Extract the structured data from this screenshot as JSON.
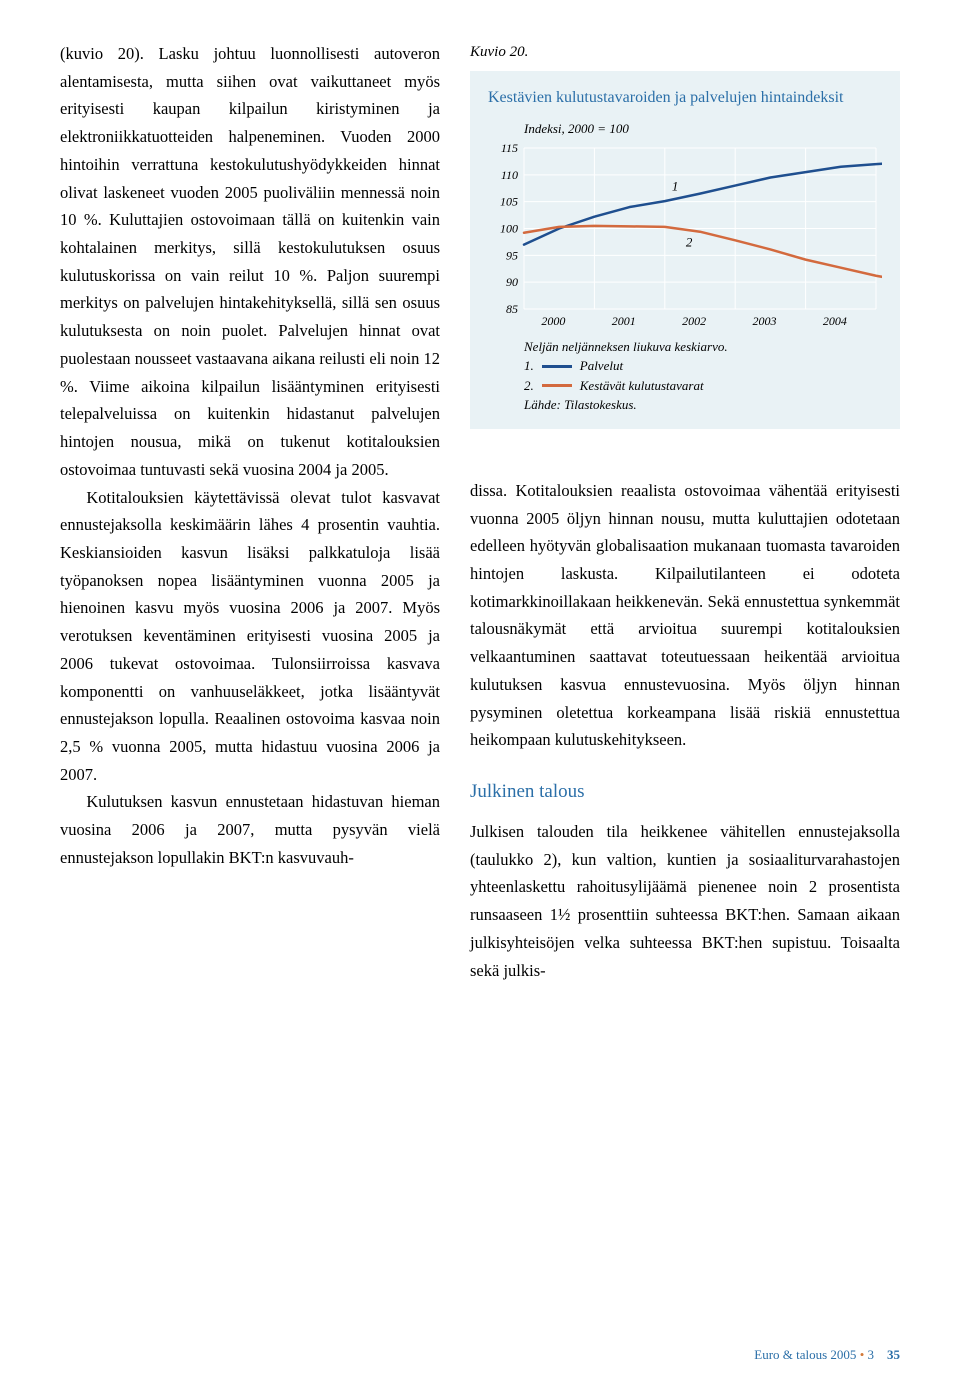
{
  "left": {
    "p1": "(kuvio 20). Lasku johtuu luonnollisesti autoveron alentamisesta, mutta siihen ovat vaikuttaneet myös erityisesti kaupan kilpailun kiristyminen ja elektroniikkatuotteiden halpeneminen. Vuoden 2000 hintoihin verrattuna kestokulutushyödykkeiden hinnat olivat laskeneet vuoden 2005 puoliväliin mennessä noin 10 %. Kuluttajien ostovoimaan tällä on kuitenkin vain kohtalainen merkitys, sillä kestokulutuksen osuus kulutuskorissa on vain reilut 10 %. Paljon suurempi merkitys on palvelujen hintakehityksellä, sillä sen osuus kulutuksesta on noin puolet. Palvelujen hinnat ovat puolestaan nousseet vastaavana aikana reilusti eli noin 12 %. Viime aikoina kilpailun lisääntyminen erityisesti telepalveluissa on kuitenkin hidastanut palvelujen hintojen nousua, mikä on tukenut kotitalouksien ostovoimaa tuntuvasti sekä vuosina 2004 ja 2005.",
    "p2": "Kotitalouksien käytettävissä olevat tulot kasvavat ennustejaksolla keskimäärin lähes 4 prosentin vauhtia. Keskiansioiden kasvun lisäksi palkkatuloja lisää työpanoksen nopea lisääntyminen vuonna 2005 ja hienoinen kasvu myös vuosina 2006 ja 2007. Myös verotuksen keventäminen erityisesti vuosina 2005 ja 2006 tukevat ostovoimaa. Tulonsiirroissa kasvava komponentti on vanhuuseläkkeet, jotka lisääntyvät ennustejakson lopulla. Reaalinen ostovoima kasvaa noin 2,5 % vuonna 2005, mutta hidastuu vuosina 2006 ja 2007.",
    "p3": "Kulutuksen kasvun ennustetaan hidastuvan hieman vuosina 2006 ja 2007, mutta pysyvän vielä ennustejakson lopullakin BKT:n kasvuvauh-"
  },
  "figlabel": "Kuvio 20.",
  "chart": {
    "title": "Kestävien kulutustavaroiden ja palvelujen hintaindeksit",
    "subtitle": "Indeksi, 2000 = 100",
    "type": "line",
    "background_color": "#e9f2f5",
    "grid_color": "#ffffff",
    "title_color": "#2b6fa8",
    "title_fontsize": 16,
    "label_fontsize": 13,
    "xlim": [
      2000,
      2005
    ],
    "xticks": [
      2000,
      2001,
      2002,
      2003,
      2004,
      2005
    ],
    "ylim": [
      85,
      115
    ],
    "yticks": [
      85,
      90,
      95,
      100,
      105,
      110,
      115
    ],
    "series": [
      {
        "id": 1,
        "name": "Palvelut",
        "color": "#1f4f8f",
        "line_width": 2.5,
        "x": [
          2000.0,
          2000.5,
          2001.0,
          2001.5,
          2002.0,
          2002.5,
          2003.0,
          2003.5,
          2004.0,
          2004.5,
          2005.0,
          2005.3
        ],
        "y": [
          97.0,
          100.0,
          102.2,
          104.0,
          105.1,
          106.5,
          108.0,
          109.5,
          110.5,
          111.5,
          112.0,
          112.2
        ]
      },
      {
        "id": 2,
        "name": "Kestävät kulutustavarat",
        "color": "#d36a3e",
        "line_width": 2.5,
        "x": [
          2000.0,
          2000.5,
          2001.0,
          2001.5,
          2002.0,
          2002.5,
          2003.0,
          2003.5,
          2004.0,
          2004.5,
          2005.0,
          2005.3
        ],
        "y": [
          99.2,
          100.3,
          100.5,
          100.4,
          100.3,
          99.4,
          97.8,
          96.1,
          94.2,
          92.7,
          91.2,
          90.5
        ]
      }
    ],
    "annot1": "1",
    "annot2": "2",
    "legend_head": "Neljän neljänneksen liukuva keskiarvo.",
    "legend1_num": "1.",
    "legend1_txt": "Palvelut",
    "legend2_num": "2.",
    "legend2_txt": "Kestävät kulutustavarat",
    "source": "Lähde: Tilastokeskus."
  },
  "right": {
    "p1": "dissa. Kotitalouksien reaalista ostovoimaa vähentää erityisesti vuonna 2005 öljyn hinnan nousu, mutta kuluttajien odotetaan edelleen hyötyvän globalisaation mukanaan tuomasta tavaroiden hintojen laskusta. Kilpailutilanteen ei odoteta kotimarkkinoillakaan heikkenevän. Sekä ennustettua synkemmät talousnäkymät että arvioitua suurempi kotitalouksien velkaantuminen saattavat toteutuessaan heikentää arvioitua kulutuksen kasvua ennustevuosina. Myös öljyn hinnan pysyminen oletettua korkeampana lisää riskiä ennustettua heikompaan kulutuskehitykseen.",
    "head": "Julkinen talous",
    "p2": "Julkisen talouden tila heikkenee vähitellen ennustejaksolla (taulukko 2), kun valtion, kuntien ja sosiaaliturvarahastojen yhteenlaskettu rahoitusylijäämä pienenee noin 2 prosentista runsaaseen 1½ prosenttiin suhteessa BKT:hen. Samaan aikaan julkisyhteisöjen velka suhteessa BKT:hen supistuu. Toisaalta sekä julkis-"
  },
  "footer": {
    "journal": "Euro & talous 2005",
    "issue": "3",
    "page": "35"
  }
}
